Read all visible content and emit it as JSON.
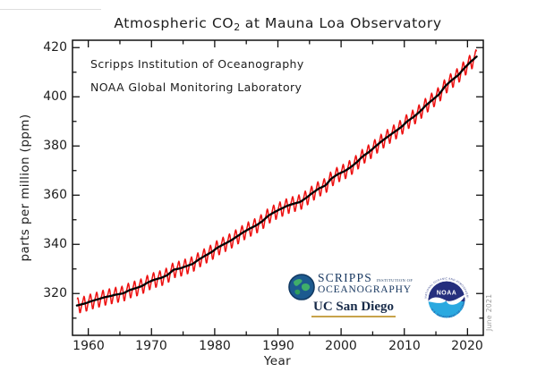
{
  "page": {
    "title_pre": "Atmospheric CO",
    "title_sub": "2",
    "title_post": " at Mauna Loa Observatory"
  },
  "annotations": {
    "line1": "Scripps Institution of Oceanography",
    "line2": "NOAA Global Monitoring Laboratory"
  },
  "date_stamp": "June 2021",
  "logos": {
    "scripps": {
      "wordmark": "SCRIPPS",
      "wordmark_small": "INSTITUTION OF",
      "wordmark_bottom": "OCEANOGRAPHY",
      "university": "UC San Diego",
      "navy": "#16365f",
      "gold": "#c7a34a"
    },
    "noaa": {
      "acronym": "NOAA",
      "ring_top": "NATIONAL OCEANIC AND ATMOSPHERIC ADMINISTRATION",
      "ring_bottom": "U.S. DEPARTMENT OF COMMERCE",
      "dark_blue": "#252f7d",
      "light_blue": "#2aa9e0"
    }
  },
  "chart_data": {
    "type": "line",
    "title": "Atmospheric CO2 at Mauna Loa Observatory",
    "xlabel": "Year",
    "ylabel": "parts per million (ppm)",
    "xlim": [
      1957.5,
      2022.5
    ],
    "ylim": [
      303,
      423
    ],
    "grid": false,
    "legend": "none",
    "xticks": [
      1960,
      1970,
      1980,
      1990,
      2000,
      2010,
      2020
    ],
    "xticks_minor": [
      1965,
      1975,
      1985,
      1995,
      2005,
      2015
    ],
    "xtick_labels": [
      "1960",
      "1970",
      "1980",
      "1990",
      "2000",
      "2010",
      "2020"
    ],
    "yticks": [
      320,
      340,
      360,
      380,
      400,
      420
    ],
    "yticks_minor": [
      310,
      330,
      350,
      370,
      390,
      410
    ],
    "ytick_labels": [
      "320",
      "340",
      "360",
      "380",
      "400",
      "420"
    ],
    "series": [
      {
        "name": "Monthly mean CO2 (seasonal cycle)",
        "color": "#ee1111"
      },
      {
        "name": "Seasonally adjusted trend",
        "color": "#000000"
      }
    ],
    "trend_start_year": 1958,
    "trend_values": [
      315.34,
      315.97,
      316.91,
      317.64,
      318.45,
      318.99,
      319.62,
      320.04,
      321.37,
      322.18,
      323.05,
      324.62,
      325.68,
      326.32,
      327.46,
      329.68,
      330.19,
      331.12,
      332.03,
      333.84,
      335.41,
      336.84,
      338.76,
      340.12,
      341.48,
      343.15,
      344.87,
      346.35,
      347.61,
      349.31,
      351.69,
      353.2,
      354.45,
      355.7,
      356.54,
      357.21,
      358.96,
      360.97,
      362.74,
      363.88,
      366.84,
      368.54,
      369.71,
      371.32,
      373.45,
      375.98,
      377.7,
      379.98,
      382.09,
      384.02,
      385.83,
      387.64,
      390.1,
      391.85,
      394.06,
      396.74,
      398.81,
      401.01,
      404.41,
      406.76,
      408.72,
      411.66,
      414.24,
      416.45
    ],
    "seasonal_offsets_by_month": [
      0.0,
      0.7,
      1.5,
      2.5,
      3.0,
      2.2,
      0.5,
      -1.8,
      -3.2,
      -3.2,
      -2.0,
      -0.8
    ],
    "data_start": 1958.2,
    "data_end": 2021.45
  }
}
